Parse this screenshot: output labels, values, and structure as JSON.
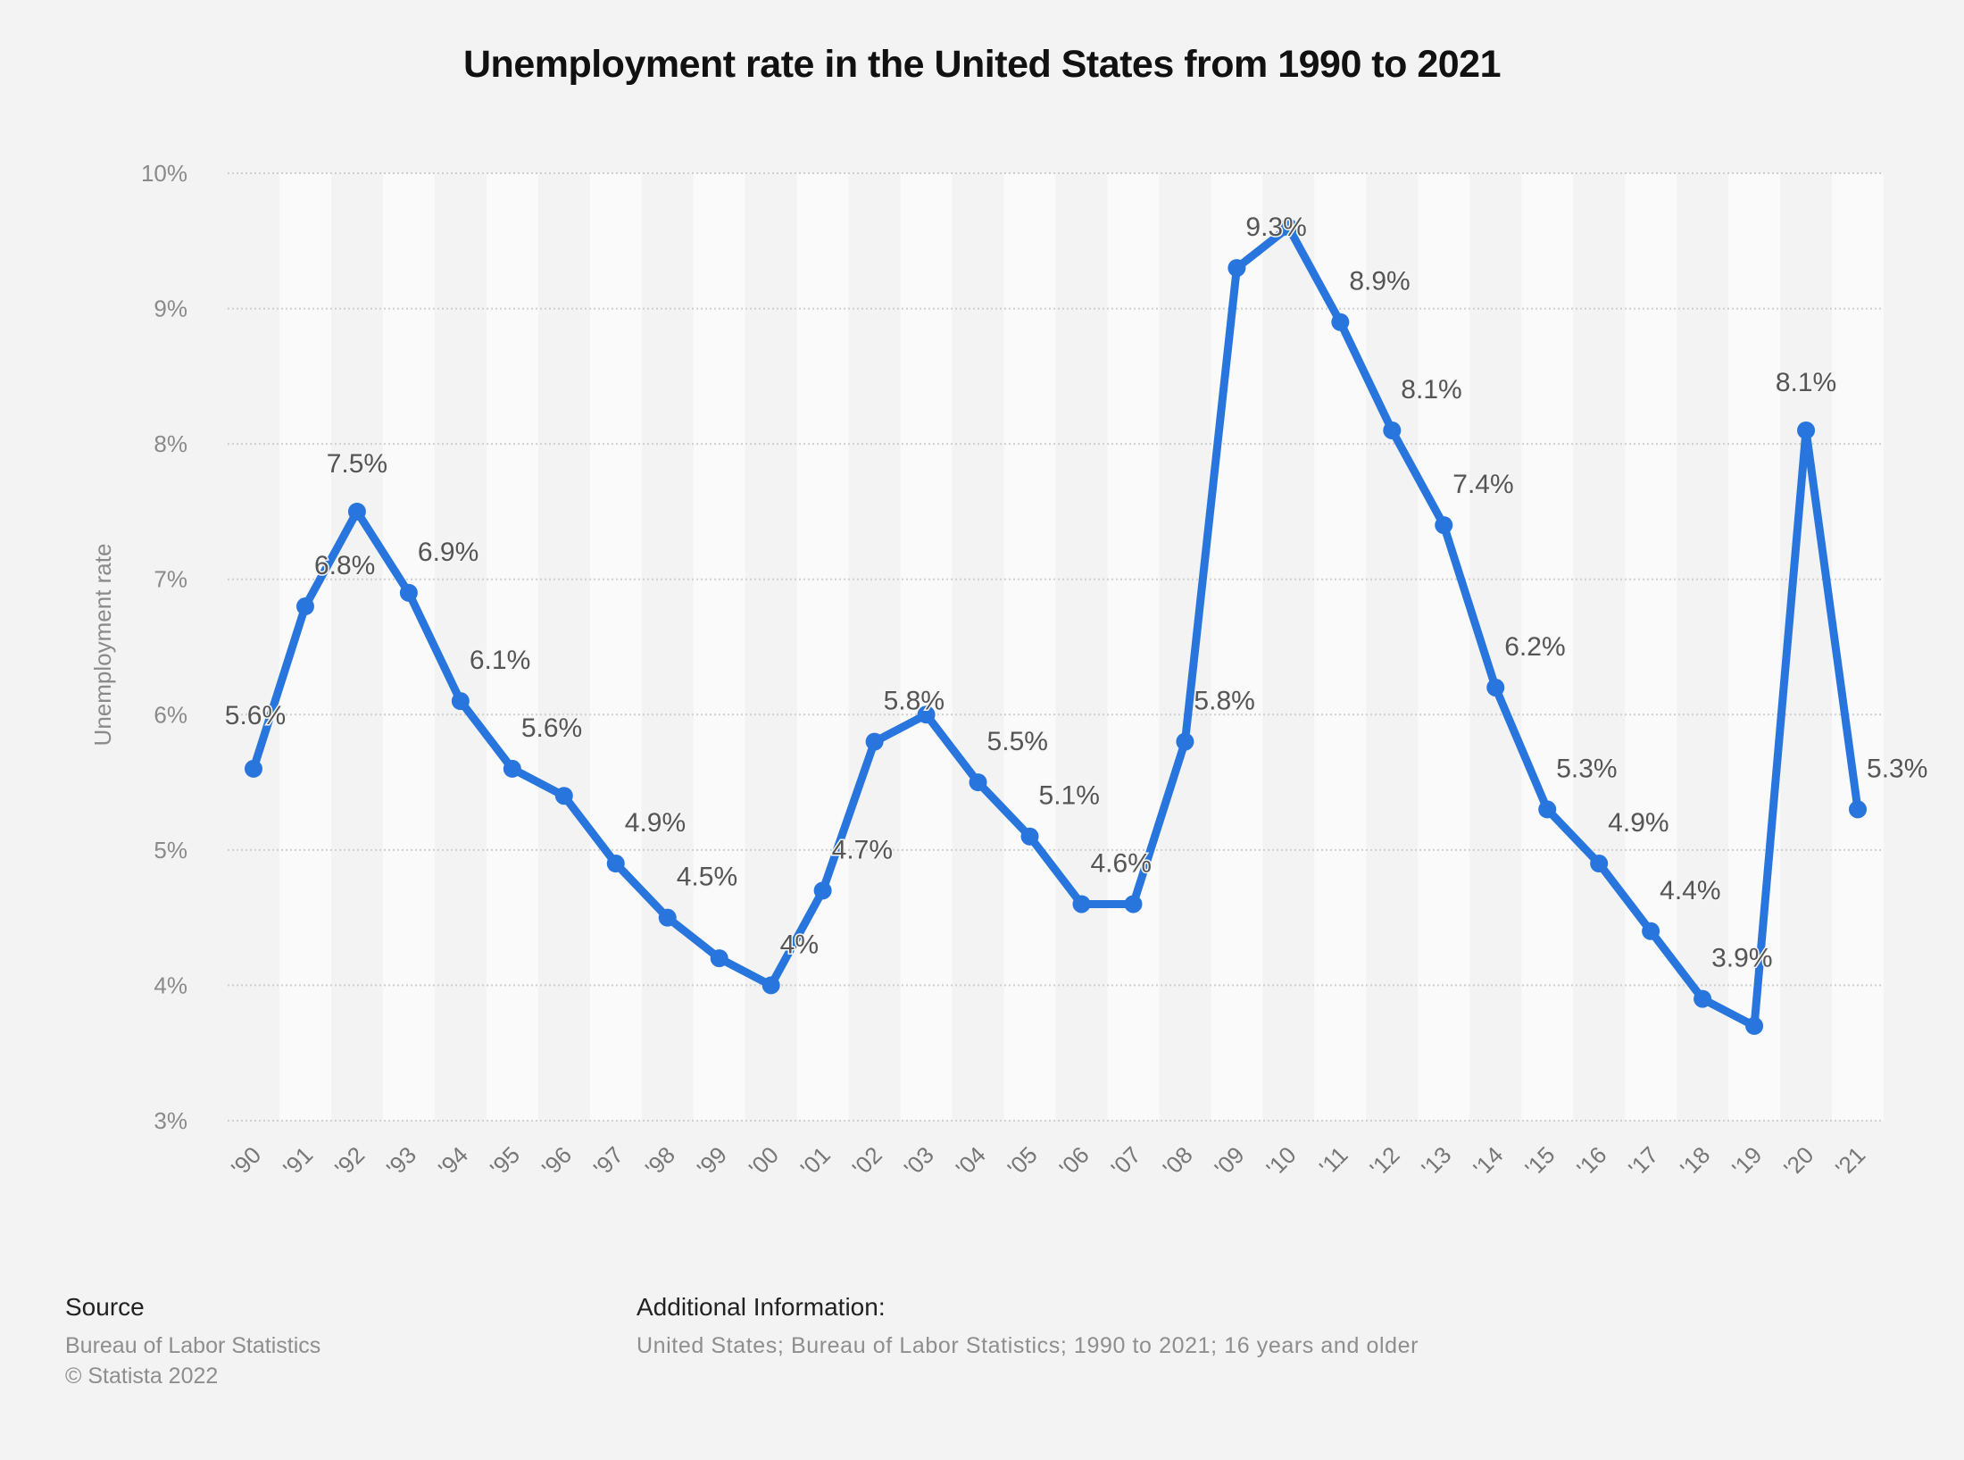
{
  "chart_data": {
    "type": "line",
    "title": "Unemployment rate in the United States from 1990 to 2021",
    "xlabel": "",
    "ylabel": "Unemployment rate",
    "ylim": [
      3,
      10
    ],
    "yticks": [
      3,
      4,
      5,
      6,
      7,
      8,
      9,
      10
    ],
    "ytick_labels": [
      "3%",
      "4%",
      "5%",
      "6%",
      "7%",
      "8%",
      "9%",
      "10%"
    ],
    "grid": true,
    "legend": "none",
    "categories": [
      "'90",
      "'91",
      "'92",
      "'93",
      "'94",
      "'95",
      "'96",
      "'97",
      "'98",
      "'99",
      "'00",
      "'01",
      "'02",
      "'03",
      "'04",
      "'05",
      "'06",
      "'07",
      "'08",
      "'09",
      "'10",
      "'11",
      "'12",
      "'13",
      "'14",
      "'15",
      "'16",
      "'17",
      "'18",
      "'19",
      "'20",
      "'21"
    ],
    "series": [
      {
        "name": "Unemployment rate",
        "color": "#2876dd",
        "values": [
          5.6,
          6.8,
          7.5,
          6.9,
          6.1,
          5.6,
          5.4,
          4.9,
          4.5,
          4.2,
          4.0,
          4.7,
          5.8,
          6.0,
          5.5,
          5.1,
          4.6,
          4.6,
          5.8,
          9.3,
          9.6,
          8.9,
          8.1,
          7.4,
          6.2,
          5.3,
          4.9,
          4.4,
          3.9,
          3.7,
          8.1,
          5.3
        ],
        "data_labels": [
          "5.6%",
          "6.8%",
          "7.5%",
          "6.9%",
          "6.1%",
          "5.6%",
          null,
          "4.9%",
          "4.5%",
          null,
          "4%",
          "4.7%",
          "5.8%",
          null,
          "5.5%",
          "5.1%",
          "4.6%",
          null,
          "5.8%",
          "9.3%",
          null,
          "8.9%",
          "8.1%",
          "7.4%",
          "6.2%",
          "5.3%",
          "4.9%",
          "4.4%",
          "3.9%",
          null,
          "8.1%",
          "5.3%"
        ]
      }
    ]
  },
  "footer": {
    "source_heading": "Source",
    "source_lines": [
      "Bureau of Labor Statistics",
      "© Statista 2022"
    ],
    "info_heading": "Additional Information:",
    "info_text": "United States; Bureau of Labor Statistics; 1990 to 2021; 16 years and older"
  }
}
